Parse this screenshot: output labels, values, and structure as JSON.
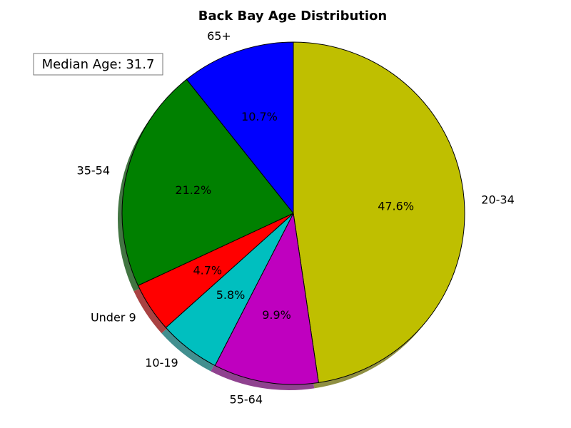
{
  "chart_data": {
    "type": "pie",
    "title": "Back Bay Age Distribution",
    "start_angle_deg": 90,
    "direction": "clockwise",
    "shadow": true,
    "annotation": "Median Age: 31.7",
    "slices": [
      {
        "label": "20-34",
        "value": 47.6,
        "pct_label": "47.6%",
        "color": "#bfbf00"
      },
      {
        "label": "55-64",
        "value": 9.9,
        "pct_label": "9.9%",
        "color": "#bf00bf"
      },
      {
        "label": "10-19",
        "value": 5.8,
        "pct_label": "5.8%",
        "color": "#00bfbf"
      },
      {
        "label": "Under 9",
        "value": 4.7,
        "pct_label": "4.7%",
        "color": "#ff0000"
      },
      {
        "label": "35-54",
        "value": 21.2,
        "pct_label": "21.2%",
        "color": "#008000"
      },
      {
        "label": "65+",
        "value": 10.7,
        "pct_label": "10.7%",
        "color": "#0000ff"
      }
    ]
  }
}
